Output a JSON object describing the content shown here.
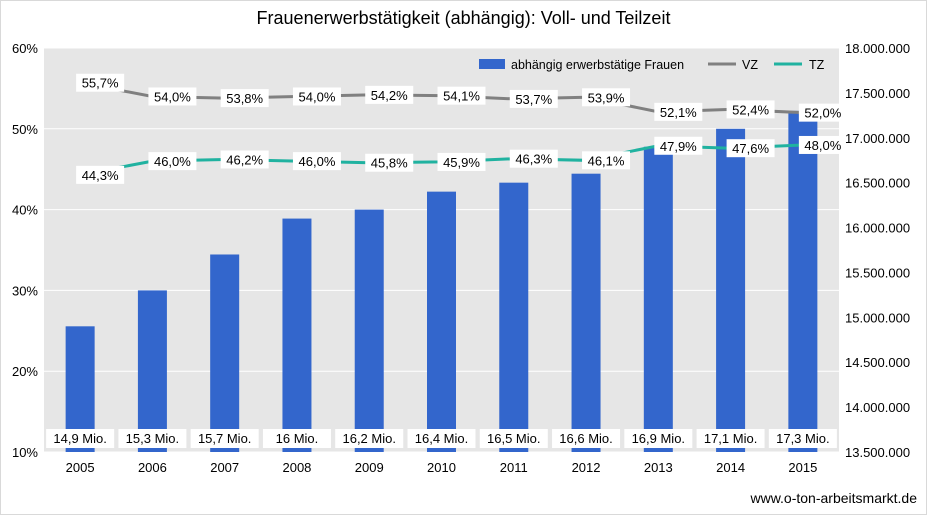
{
  "title": "Frauenerwerbstätigkeit (abhängig): Voll- und Teilzeit",
  "footer": "www.o-ton-arbeitsmarkt.de",
  "chart_data": {
    "type": "bar",
    "title": "Frauenerwerbstätigkeit (abhängig): Voll- und Teilzeit",
    "categories": [
      "2005",
      "2006",
      "2007",
      "2008",
      "2009",
      "2010",
      "2011",
      "2012",
      "2013",
      "2014",
      "2015"
    ],
    "bar_series": {
      "name": "abhängig erwerbstätige Frauen",
      "axis": "right",
      "color": "#3366cc",
      "values": [
        14900000,
        15300000,
        15700000,
        16100000,
        16200000,
        16400000,
        16500000,
        16600000,
        16900000,
        17100000,
        17300000
      ],
      "labels": [
        "14,9 Mio.",
        "15,3 Mio.",
        "15,7 Mio.",
        "16 Mio.",
        "16,2 Mio.",
        "16,4 Mio.",
        "16,5 Mio.",
        "16,6 Mio.",
        "16,9 Mio.",
        "17,1 Mio.",
        "17,3 Mio."
      ]
    },
    "line_series": [
      {
        "name": "VZ",
        "axis": "left",
        "color": "#808080",
        "values": [
          55.7,
          54.0,
          53.8,
          54.0,
          54.2,
          54.1,
          53.7,
          53.9,
          52.1,
          52.4,
          52.0
        ],
        "labels": [
          "55,7%",
          "54,0%",
          "53,8%",
          "54,0%",
          "54,2%",
          "54,1%",
          "53,7%",
          "53,9%",
          "52,1%",
          "52,4%",
          "52,0%"
        ]
      },
      {
        "name": "TZ",
        "axis": "left",
        "color": "#20b2a0",
        "values": [
          44.3,
          46.0,
          46.2,
          46.0,
          45.8,
          45.9,
          46.3,
          46.1,
          47.9,
          47.6,
          48.0
        ],
        "labels": [
          "44,3%",
          "46,0%",
          "46,2%",
          "46,0%",
          "45,8%",
          "45,9%",
          "46,3%",
          "46,1%",
          "47,9%",
          "47,6%",
          "48,0%"
        ]
      }
    ],
    "y_left": {
      "min": 10,
      "max": 60,
      "ticks": [
        "10%",
        "20%",
        "30%",
        "40%",
        "50%",
        "60%"
      ],
      "tick_values": [
        10,
        20,
        30,
        40,
        50,
        60
      ]
    },
    "y_right": {
      "min": 13500000,
      "max": 18000000,
      "ticks": [
        "13.500.000",
        "14.000.000",
        "14.500.000",
        "15.000.000",
        "15.500.000",
        "16.000.000",
        "16.500.000",
        "17.000.000",
        "17.500.000",
        "18.000.000"
      ],
      "tick_values": [
        13500000,
        14000000,
        14500000,
        15000000,
        15500000,
        16000000,
        16500000,
        17000000,
        17500000,
        18000000
      ]
    },
    "grid": true,
    "legend": "top-right"
  }
}
